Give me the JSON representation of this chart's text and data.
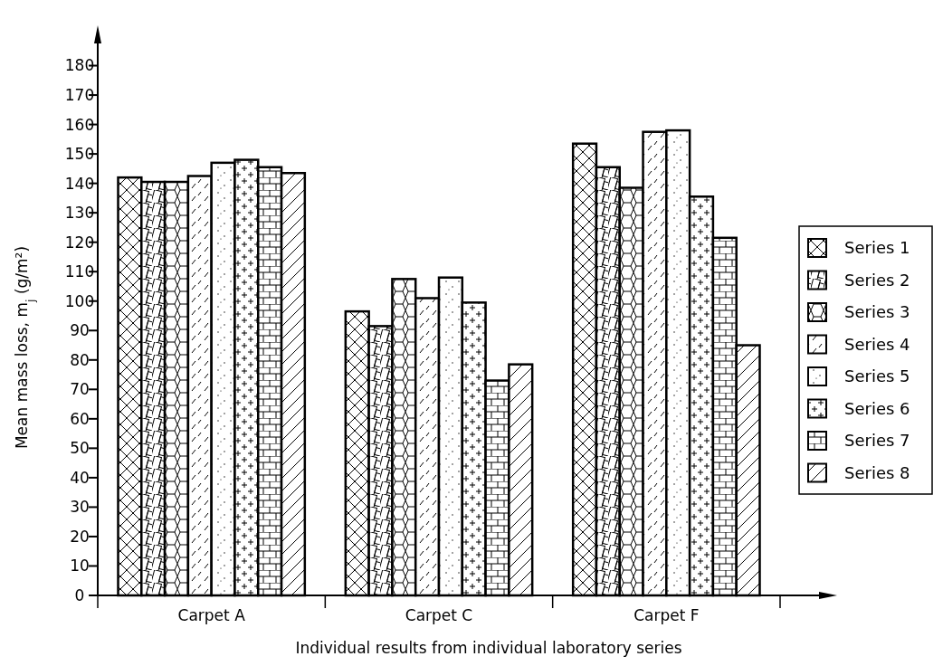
{
  "chart_data": {
    "type": "bar",
    "xlabel": "Individual results from individual laboratory series",
    "ylabel": "Mean mass loss, m$_{j}$ (g/m²)",
    "categories": [
      "Carpet A",
      "Carpet C",
      "Carpet F"
    ],
    "series": [
      {
        "name": "Series 1",
        "color": "#000000",
        "values": [
          142,
          96.5,
          153.5
        ]
      },
      {
        "name": "Series 2",
        "color": "#000000",
        "values": [
          140.5,
          91.5,
          145.5
        ]
      },
      {
        "name": "Series 3",
        "color": "#000000",
        "values": [
          140.5,
          107.5,
          138.5
        ]
      },
      {
        "name": "Series 4",
        "color": "#000000",
        "values": [
          142.5,
          101,
          157.5
        ]
      },
      {
        "name": "Series 5",
        "color": "#000000",
        "values": [
          147,
          108,
          158
        ]
      },
      {
        "name": "Series 6",
        "color": "#000000",
        "values": [
          148,
          99.5,
          135.5
        ]
      },
      {
        "name": "Series 7",
        "color": "#000000",
        "values": [
          145.5,
          73,
          121.5
        ]
      },
      {
        "name": "Series 8",
        "color": "#000000",
        "values": [
          143.5,
          78.5,
          85
        ]
      }
    ],
    "ylim": [
      0,
      190
    ],
    "yticks": [
      0,
      10,
      20,
      30,
      40,
      50,
      60,
      70,
      80,
      90,
      100,
      110,
      120,
      130,
      140,
      150,
      160,
      170,
      180
    ],
    "grid": false,
    "legend": "right"
  }
}
